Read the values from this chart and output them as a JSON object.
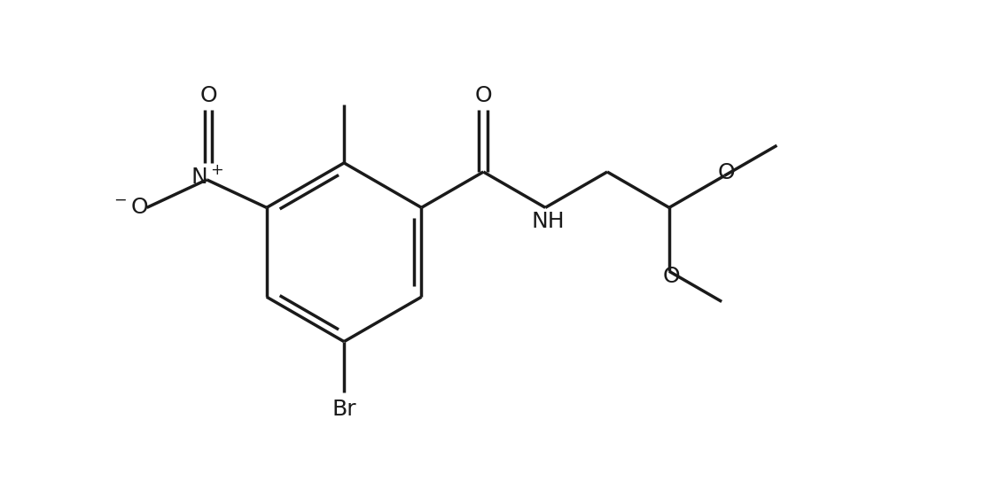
{
  "background": "#ffffff",
  "line_color": "#1a1a1a",
  "line_width": 2.5,
  "font_size": 18,
  "figsize": [
    11.27,
    5.52
  ],
  "dpi": 100,
  "xlim": [
    -3.5,
    7.5
  ],
  "ylim": [
    -3.0,
    3.2
  ]
}
